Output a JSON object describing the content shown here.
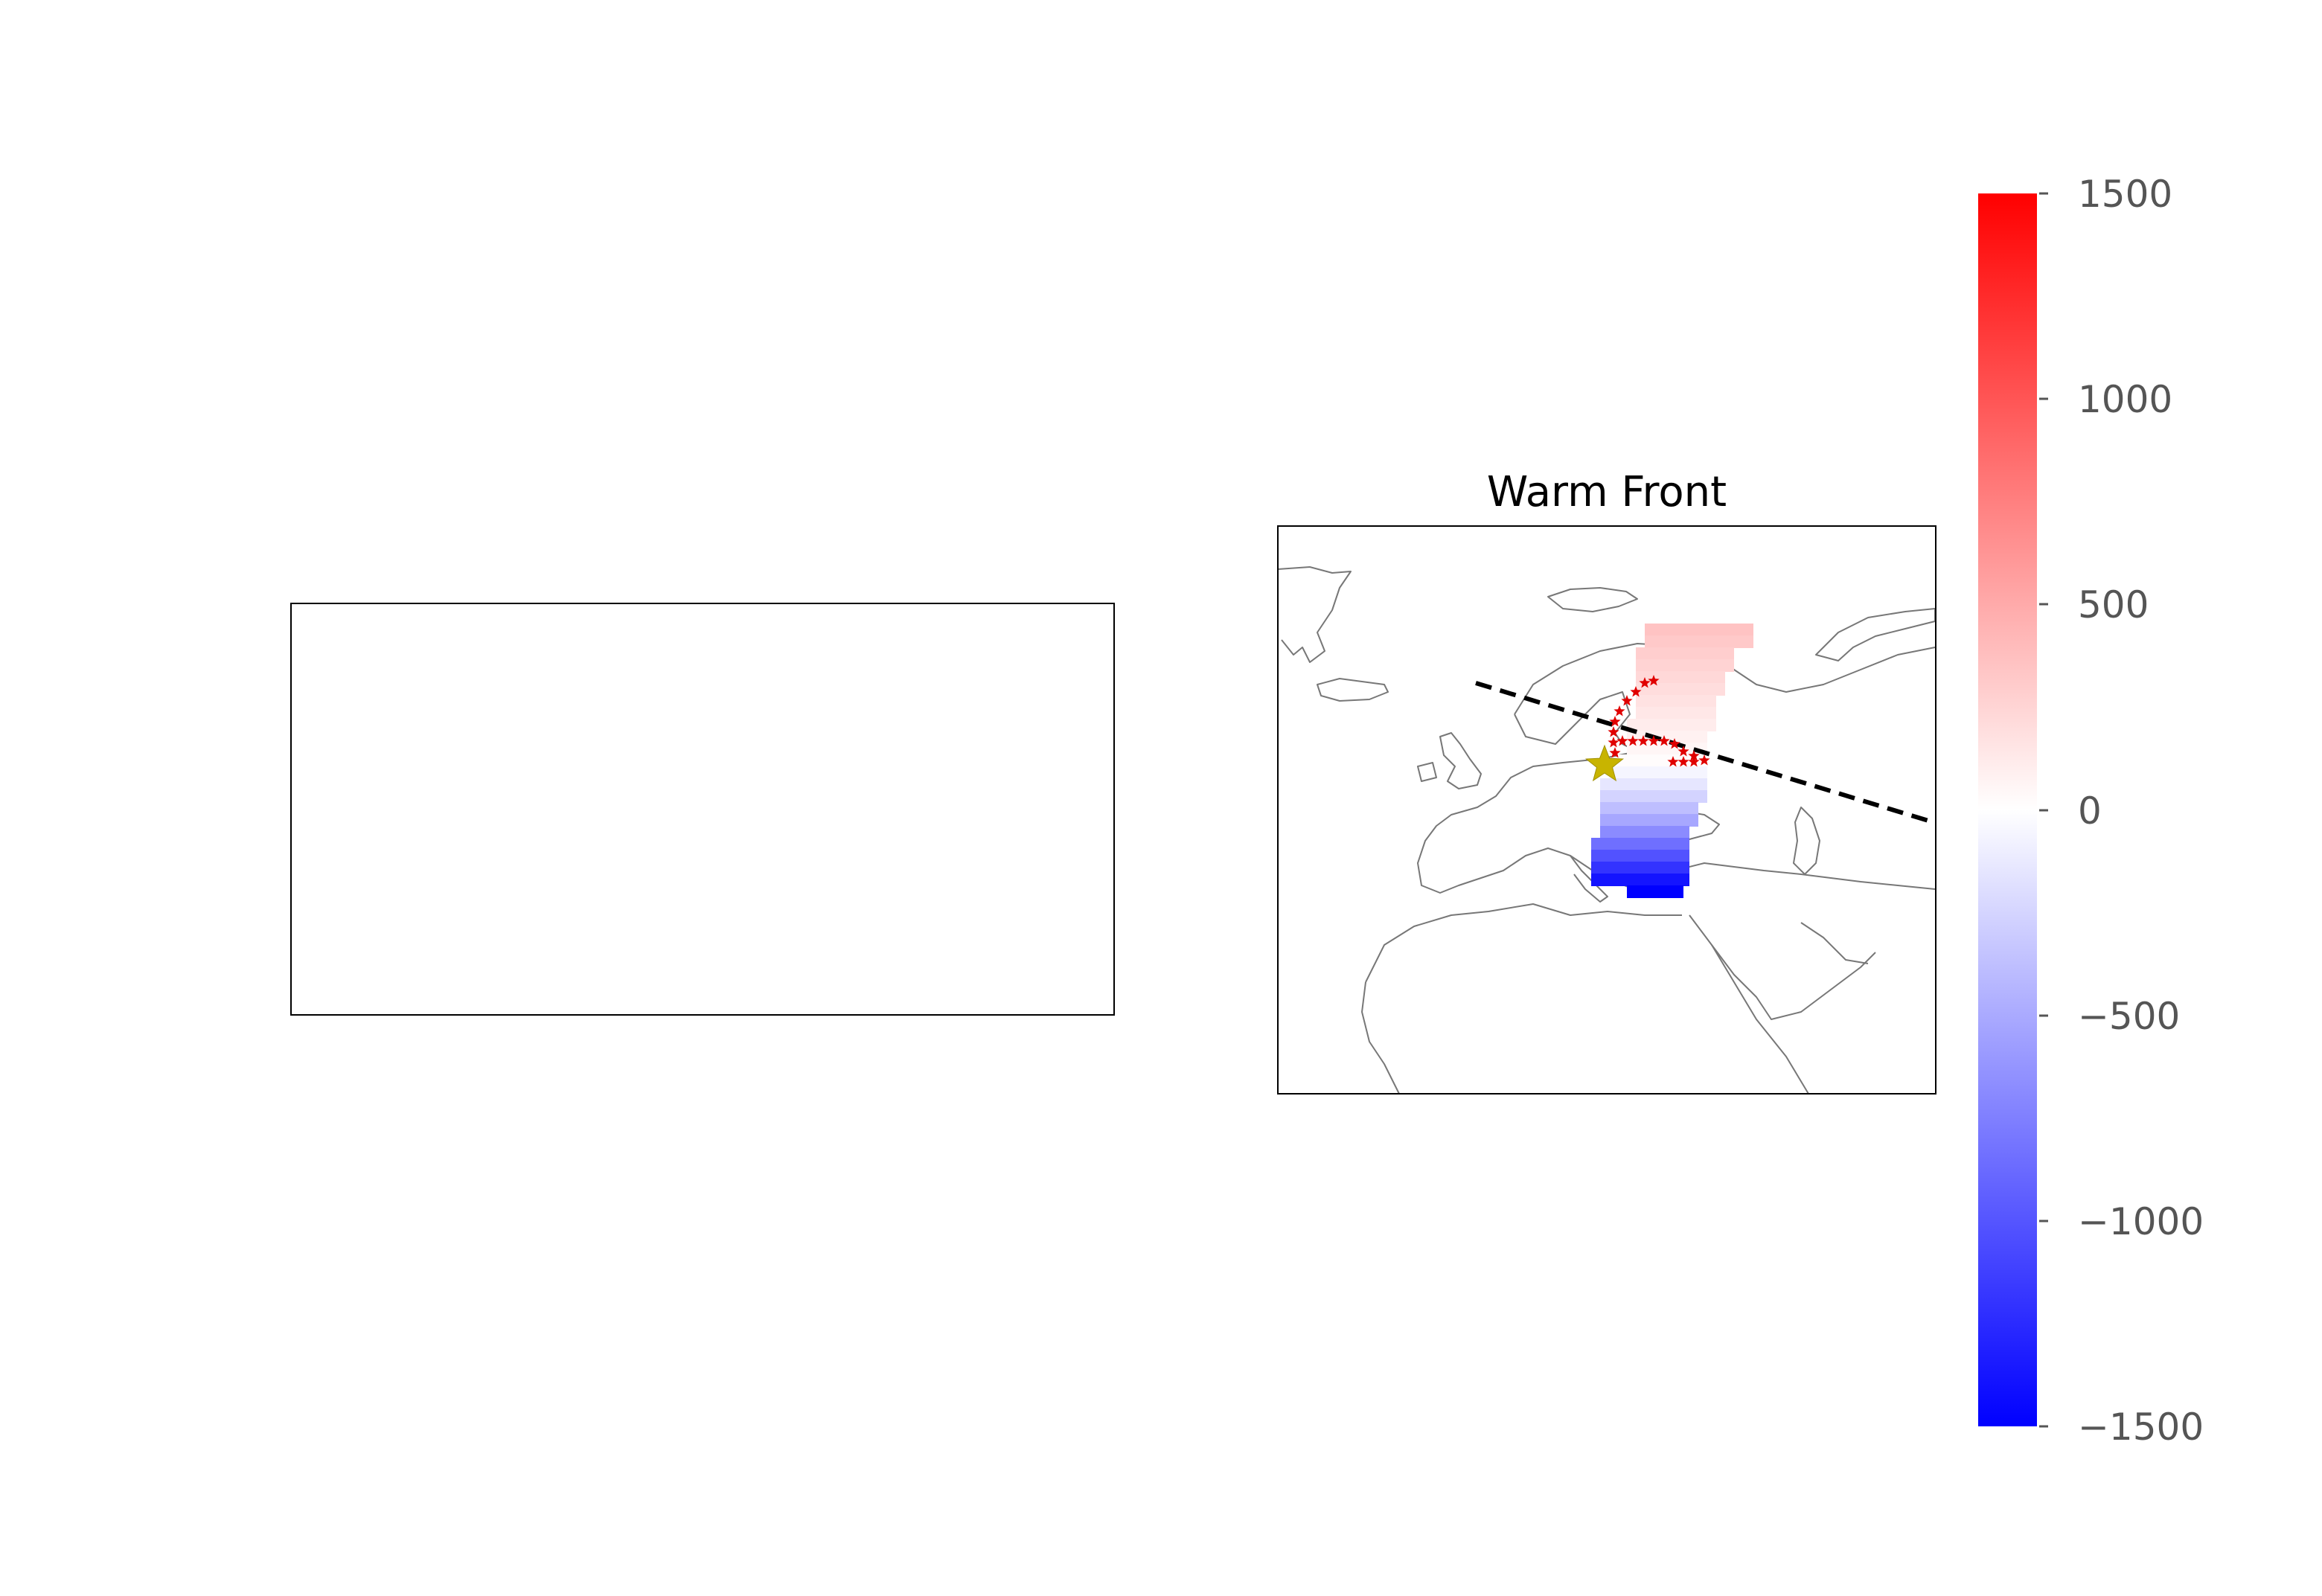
{
  "chart_data": [
    {
      "type": "heatmap",
      "title": "",
      "empty": true
    },
    {
      "type": "heatmap",
      "title": "Warm Front",
      "map": "Europe / North Africa coastlines",
      "front_line": {
        "style": "dashed",
        "color": "#000000"
      },
      "track_marker_color": "#e00000",
      "center_marker_color": "#c8b400",
      "colorbar": {
        "colormap": "bwr",
        "vmin": -1500,
        "vmax": 1500,
        "ticks": [
          1500,
          1000,
          500,
          0,
          -500,
          -1000,
          -1500
        ],
        "tick_labels": [
          "1500",
          "1000",
          "500",
          "0",
          "−1500"
        ],
        "all_tick_labels": [
          "1500",
          "1000",
          "500",
          "0",
          "−500",
          "−1000",
          "−1500"
        ]
      },
      "field_rows": [
        {
          "value": 350
        },
        {
          "value": 320
        },
        {
          "value": 290
        },
        {
          "value": 260
        },
        {
          "value": 230
        },
        {
          "value": 200
        },
        {
          "value": 170
        },
        {
          "value": 140
        },
        {
          "value": 110
        },
        {
          "value": 80
        },
        {
          "value": 50
        },
        {
          "value": 20
        },
        {
          "value": -60
        },
        {
          "value": -150
        },
        {
          "value": -260
        },
        {
          "value": -380
        },
        {
          "value": -520
        },
        {
          "value": -680
        },
        {
          "value": -850
        },
        {
          "value": -1020
        },
        {
          "value": -1200
        },
        {
          "value": -1380
        },
        {
          "value": -1500
        }
      ]
    }
  ]
}
